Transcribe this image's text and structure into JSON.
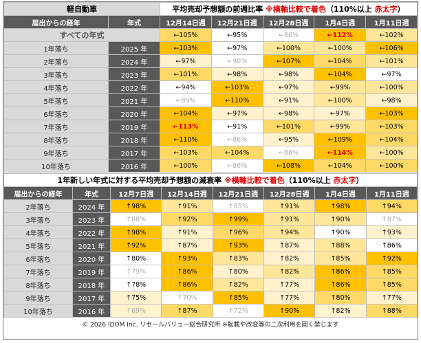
{
  "week_table": {
    "category": "軽自動車",
    "title_parts": [
      "平均売却予想額の前週比率 ",
      "※横軸比較で着色",
      "（110%以上 ",
      "赤太字",
      "）"
    ],
    "columns": [
      "届出からの経年",
      "年式",
      "12月14日週",
      "12月21日週",
      "12月28日週",
      "1月4日週",
      "1月11日週"
    ],
    "all_row": {
      "label": "すべての年式",
      "cells": [
        "←105%",
        "←95%",
        "←86%",
        "←112%",
        "←102%"
      ]
    },
    "rows": [
      {
        "age": "1年落ち",
        "year": "2025 年",
        "cells": [
          "←103%",
          "←97%",
          "←100%",
          "←100%",
          "←106%"
        ]
      },
      {
        "age": "2年落ち",
        "year": "2024 年",
        "cells": [
          "←97%",
          "←90%",
          "←107%",
          "←104%",
          "←101%"
        ]
      },
      {
        "age": "3年落ち",
        "year": "2023 年",
        "cells": [
          "←101%",
          "←98%",
          "←98%",
          "←104%",
          "←97%"
        ]
      },
      {
        "age": "4年落ち",
        "year": "2022 年",
        "cells": [
          "←94%",
          "←103%",
          "←97%",
          "←99%",
          "←100%"
        ]
      },
      {
        "age": "5年落ち",
        "year": "2021 年",
        "cells": [
          "←89%",
          "←110%",
          "←91%",
          "←100%",
          "←98%"
        ]
      },
      {
        "age": "6年落ち",
        "year": "2020 年",
        "cells": [
          "←104%",
          "←97%",
          "←98%",
          "←97%",
          "←103%"
        ]
      },
      {
        "age": "7年落ち",
        "year": "2019 年",
        "cells": [
          "←113%",
          "←91%",
          "←101%",
          "←99%",
          "←103%"
        ]
      },
      {
        "age": "8年落ち",
        "year": "2018 年",
        "cells": [
          "←110%",
          "←86%",
          "←95%",
          "←109%",
          "←104%"
        ]
      },
      {
        "age": "9年落ち",
        "year": "2017 年",
        "cells": [
          "←103%",
          "←104%",
          "←86%",
          "←114%",
          "←100%"
        ]
      },
      {
        "age": "10年落ち",
        "year": "2016 年",
        "cells": [
          "←100%",
          "←86%",
          "←108%",
          "←104%",
          "←100%"
        ]
      }
    ]
  },
  "decay_table": {
    "title_parts": [
      "1年新しい年式に対する平均売却予想額の減衰率 ",
      "※横軸比較で着色",
      "（110%以上 ",
      "赤太字",
      "）"
    ],
    "columns": [
      "届出からの経年",
      "年式",
      "12月7日週",
      "12月14日週",
      "12月21日週",
      "12月28日週",
      "1月4日週",
      "1月11日週"
    ],
    "rows": [
      {
        "age": "2年落ち",
        "year": "2024 年",
        "cells": [
          "↑98%",
          "↑91%",
          "↑85%",
          "↑91%",
          "↑98%",
          "↑94%"
        ]
      },
      {
        "age": "3年落ち",
        "year": "2023 年",
        "cells": [
          "↑88%",
          "↑92%",
          "↑99%",
          "↑91%",
          "↑90%",
          "↑87%"
        ]
      },
      {
        "age": "4年落ち",
        "year": "2022 年",
        "cells": [
          "↑98%",
          "↑91%",
          "↑96%",
          "↑94%",
          "↑90%",
          "↑93%"
        ]
      },
      {
        "age": "5年落ち",
        "year": "2021 年",
        "cells": [
          "↑92%",
          "↑87%",
          "↑93%",
          "↑87%",
          "↑88%",
          "↑86%"
        ]
      },
      {
        "age": "6年落ち",
        "year": "2020 年",
        "cells": [
          "↑80%",
          "↑93%",
          "↑83%",
          "↑82%",
          "↑85%",
          "↑92%"
        ]
      },
      {
        "age": "7年落ち",
        "year": "2019 年",
        "cells": [
          "↑79%",
          "↑86%",
          "↑80%",
          "↑82%",
          "↑86%",
          "↑85%"
        ]
      },
      {
        "age": "8年落ち",
        "year": "2018 年",
        "cells": [
          "↑78%",
          "↑86%",
          "↑82%",
          "↑77%",
          "↑86%",
          "↑85%"
        ]
      },
      {
        "age": "9年落ち",
        "year": "2017 年",
        "cells": [
          "↑75%",
          "↑70%",
          "↑85%",
          "↑77%",
          "↑80%",
          "↑77%"
        ]
      },
      {
        "age": "10年落ち",
        "year": "2016 年",
        "cells": [
          "↑69%",
          "↑87%",
          "↑72%",
          "↑90%",
          "↑82%",
          "↑88%"
        ]
      }
    ]
  },
  "footer": "© 2026 IDOM Inc. リセールバリュー総合研究所 ※転載や改変等の二次利用を固く禁じます"
}
